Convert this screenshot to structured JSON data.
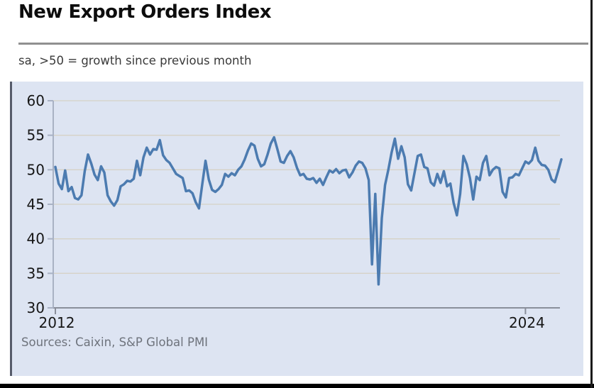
{
  "page": {
    "title": "New Export Orders Index",
    "subtitle": "sa, >50 = growth since previous month",
    "source_note": "Sources: Caixin, S&P Global PMI"
  },
  "colors": {
    "line": "#4c7bb0",
    "panel_bg": "#dde4f2",
    "gridline": "#d6d2c6",
    "baseline_axis": "#8a8f9b",
    "y_axis": "#a9b2c4",
    "tick_label": "#161616",
    "subtitle_text": "#3a3a3a",
    "source_text": "#6e737c",
    "divider": "#909090"
  },
  "chart_data": {
    "type": "line",
    "title": "New Export Orders Index",
    "subtitle": "sa, >50 = growth since previous month",
    "source": "Sources: Caixin, S&P Global PMI",
    "frequency": "monthly",
    "x_range": [
      "2012-01",
      "2024-12"
    ],
    "x_tick_labels": [
      "2012",
      "2024"
    ],
    "x_tick_years": [
      2012,
      2024
    ],
    "y_ticks": [
      30,
      35,
      40,
      45,
      50,
      55,
      60
    ],
    "ylim": [
      30,
      60
    ],
    "grid": true,
    "legend": "none",
    "series": [
      {
        "name": "New Export Orders Index",
        "start_year": 2012,
        "start_month": 1,
        "values": [
          50.4,
          48.0,
          47.2,
          49.9,
          46.9,
          47.5,
          45.9,
          45.7,
          46.3,
          49.8,
          52.2,
          50.9,
          49.3,
          48.5,
          50.5,
          49.6,
          46.3,
          45.4,
          44.8,
          45.6,
          47.6,
          47.9,
          48.4,
          48.3,
          48.7,
          51.3,
          49.2,
          51.8,
          53.2,
          52.2,
          53.0,
          52.9,
          54.3,
          52.1,
          51.4,
          51.0,
          50.2,
          49.4,
          49.1,
          48.8,
          46.9,
          47.0,
          46.6,
          45.3,
          44.4,
          47.9,
          51.3,
          48.6,
          47.1,
          46.8,
          47.2,
          47.8,
          49.4,
          49.0,
          49.5,
          49.2,
          50.0,
          50.5,
          51.5,
          52.8,
          53.8,
          53.5,
          51.6,
          50.5,
          50.8,
          52.2,
          53.8,
          54.7,
          53.0,
          51.2,
          51.0,
          52.0,
          52.7,
          51.8,
          50.3,
          49.2,
          49.4,
          48.7,
          48.6,
          48.8,
          48.1,
          48.7,
          47.8,
          48.9,
          49.9,
          49.6,
          50.1,
          49.5,
          49.9,
          50.0,
          48.9,
          49.6,
          50.6,
          51.2,
          51.0,
          50.2,
          48.5,
          36.3,
          46.5,
          33.4,
          43.0,
          47.8,
          50.0,
          52.5,
          54.5,
          51.6,
          53.4,
          51.8,
          47.9,
          47.0,
          49.5,
          52.0,
          52.2,
          50.4,
          50.2,
          48.2,
          47.7,
          49.4,
          48.1,
          49.8,
          47.6,
          48.0,
          45.2,
          43.4,
          46.5,
          52.0,
          50.8,
          48.8,
          45.7,
          49.0,
          48.5,
          51.0,
          52.0,
          49.2,
          50.0,
          50.4,
          50.2,
          46.8,
          46.0,
          48.8,
          48.9,
          49.4,
          49.2,
          50.2,
          51.2,
          50.9,
          51.4,
          53.2,
          51.3,
          50.7,
          50.6,
          50.0,
          48.6,
          48.2,
          49.8,
          51.5
        ]
      }
    ]
  }
}
